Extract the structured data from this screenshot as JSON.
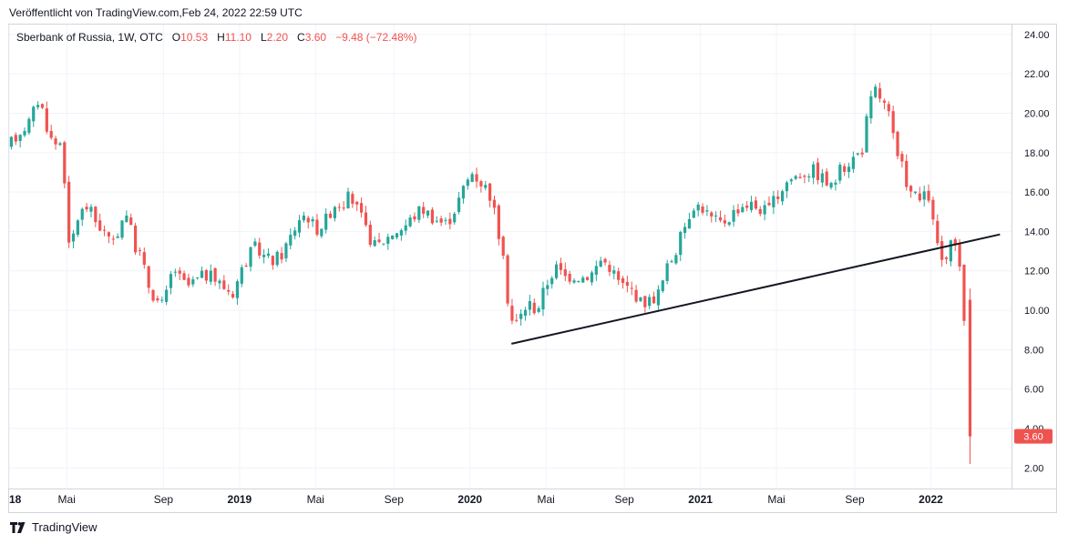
{
  "header": {
    "published_text": "Veröffentlicht von TradingView.com,Feb 24, 2022 22:59 UTC"
  },
  "legend": {
    "symbol": "Sberbank of Russia, 1W, OTC",
    "o_label": "O",
    "o_value": "10.53",
    "h_label": "H",
    "h_value": "11.10",
    "l_label": "L",
    "l_value": "2.20",
    "c_label": "C",
    "c_value": "3.60",
    "change": "−9.48 (−72.48%)"
  },
  "footer": {
    "brand": "TradingView"
  },
  "colors": {
    "up": "#26a69a",
    "down": "#ef5350",
    "grid": "#f0f3fa",
    "trendline": "#131722",
    "axis_text": "#131722"
  },
  "chart_data": {
    "type": "candlestick",
    "title": "Sberbank of Russia, 1W, OTC",
    "ylim": [
      1.0,
      24.5
    ],
    "y_ticks": [
      "2.00",
      "4.00",
      "6.00",
      "8.00",
      "10.00",
      "12.00",
      "14.00",
      "16.00",
      "18.00",
      "20.00",
      "22.00",
      "24.00"
    ],
    "x_labels": [
      {
        "t": 0.0,
        "text": "18",
        "bold": true
      },
      {
        "t": 0.25,
        "text": "Mai",
        "bold": false
      },
      {
        "t": 0.67,
        "text": "Sep",
        "bold": false
      },
      {
        "t": 1.0,
        "text": "2019",
        "bold": true
      },
      {
        "t": 1.33,
        "text": "Mai",
        "bold": false
      },
      {
        "t": 1.67,
        "text": "Sep",
        "bold": false
      },
      {
        "t": 2.0,
        "text": "2020",
        "bold": true
      },
      {
        "t": 2.33,
        "text": "Mai",
        "bold": false
      },
      {
        "t": 2.67,
        "text": "Sep",
        "bold": false
      },
      {
        "t": 3.0,
        "text": "2021",
        "bold": true
      },
      {
        "t": 3.33,
        "text": "Mai",
        "bold": false
      },
      {
        "t": 3.67,
        "text": "Sep",
        "bold": false
      },
      {
        "t": 4.0,
        "text": "2022",
        "bold": true
      }
    ],
    "x_range": [
      0.0,
      4.35
    ],
    "last_price": {
      "value": 3.6,
      "text": "3.60"
    },
    "trendline": {
      "start": {
        "t": 2.18,
        "price": 8.3
      },
      "end": {
        "t": 4.3,
        "price": 13.85
      }
    },
    "price_path": [
      [
        0.0,
        18.2
      ],
      [
        0.05,
        19.0
      ],
      [
        0.1,
        19.6
      ],
      [
        0.14,
        20.8
      ],
      [
        0.17,
        19.5
      ],
      [
        0.2,
        18.4
      ],
      [
        0.24,
        18.6
      ],
      [
        0.27,
        13.0
      ],
      [
        0.31,
        14.8
      ],
      [
        0.35,
        15.3
      ],
      [
        0.38,
        14.6
      ],
      [
        0.42,
        14.0
      ],
      [
        0.46,
        13.2
      ],
      [
        0.49,
        14.4
      ],
      [
        0.52,
        15.0
      ],
      [
        0.55,
        13.4
      ],
      [
        0.58,
        12.8
      ],
      [
        0.61,
        11.4
      ],
      [
        0.64,
        10.7
      ],
      [
        0.67,
        10.2
      ],
      [
        0.7,
        11.0
      ],
      [
        0.72,
        12.3
      ],
      [
        0.75,
        11.6
      ],
      [
        0.78,
        11.2
      ],
      [
        0.82,
        11.5
      ],
      [
        0.86,
        11.8
      ],
      [
        0.9,
        11.6
      ],
      [
        0.94,
        11.2
      ],
      [
        0.98,
        10.9
      ],
      [
        1.01,
        11.8
      ],
      [
        1.04,
        12.6
      ],
      [
        1.08,
        13.2
      ],
      [
        1.12,
        12.7
      ],
      [
        1.15,
        12.5
      ],
      [
        1.19,
        12.8
      ],
      [
        1.23,
        13.7
      ],
      [
        1.27,
        14.7
      ],
      [
        1.3,
        14.9
      ],
      [
        1.34,
        14.1
      ],
      [
        1.38,
        14.5
      ],
      [
        1.42,
        15.4
      ],
      [
        1.46,
        15.5
      ],
      [
        1.49,
        15.8
      ],
      [
        1.53,
        14.9
      ],
      [
        1.56,
        14.0
      ],
      [
        1.6,
        13.2
      ],
      [
        1.64,
        13.6
      ],
      [
        1.68,
        14.0
      ],
      [
        1.72,
        14.2
      ],
      [
        1.76,
        14.7
      ],
      [
        1.8,
        15.2
      ],
      [
        1.84,
        14.8
      ],
      [
        1.88,
        14.5
      ],
      [
        1.91,
        14.4
      ],
      [
        1.95,
        15.3
      ],
      [
        1.99,
        16.4
      ],
      [
        2.02,
        17.0
      ],
      [
        2.05,
        16.6
      ],
      [
        2.08,
        16.2
      ],
      [
        2.1,
        15.8
      ],
      [
        2.13,
        14.2
      ],
      [
        2.15,
        12.8
      ],
      [
        2.18,
        10.0
      ],
      [
        2.2,
        9.2
      ],
      [
        2.22,
        9.5
      ],
      [
        2.26,
        10.4
      ],
      [
        2.3,
        10.0
      ],
      [
        2.34,
        11.3
      ],
      [
        2.38,
        12.2
      ],
      [
        2.42,
        11.7
      ],
      [
        2.46,
        11.8
      ],
      [
        2.5,
        11.7
      ],
      [
        2.54,
        11.9
      ],
      [
        2.58,
        12.6
      ],
      [
        2.62,
        12.2
      ],
      [
        2.65,
        11.5
      ],
      [
        2.68,
        11.2
      ],
      [
        2.72,
        11.0
      ],
      [
        2.75,
        10.4
      ],
      [
        2.79,
        10.5
      ],
      [
        2.83,
        10.9
      ],
      [
        2.87,
        12.3
      ],
      [
        2.91,
        13.2
      ],
      [
        2.95,
        14.6
      ],
      [
        2.98,
        15.4
      ],
      [
        3.02,
        15.2
      ],
      [
        3.06,
        14.6
      ],
      [
        3.1,
        14.4
      ],
      [
        3.14,
        14.8
      ],
      [
        3.18,
        15.3
      ],
      [
        3.22,
        15.4
      ],
      [
        3.26,
        15.2
      ],
      [
        3.3,
        15.0
      ],
      [
        3.34,
        15.7
      ],
      [
        3.38,
        16.5
      ],
      [
        3.42,
        16.8
      ],
      [
        3.46,
        17.0
      ],
      [
        3.5,
        17.1
      ],
      [
        3.54,
        16.7
      ],
      [
        3.58,
        16.2
      ],
      [
        3.61,
        17.0
      ],
      [
        3.65,
        17.5
      ],
      [
        3.68,
        17.8
      ],
      [
        3.71,
        18.1
      ],
      [
        3.74,
        20.3
      ],
      [
        3.77,
        21.2
      ],
      [
        3.8,
        20.6
      ],
      [
        3.83,
        19.8
      ],
      [
        3.86,
        17.8
      ],
      [
        3.89,
        17.1
      ],
      [
        3.92,
        16.0
      ],
      [
        3.96,
        15.6
      ],
      [
        4.0,
        15.8
      ],
      [
        4.02,
        14.3
      ],
      [
        4.04,
        13.3
      ],
      [
        4.07,
        12.0
      ],
      [
        4.1,
        13.4
      ],
      [
        4.13,
        13.0
      ],
      [
        4.15,
        10.5
      ],
      [
        4.17,
        3.6
      ]
    ]
  }
}
